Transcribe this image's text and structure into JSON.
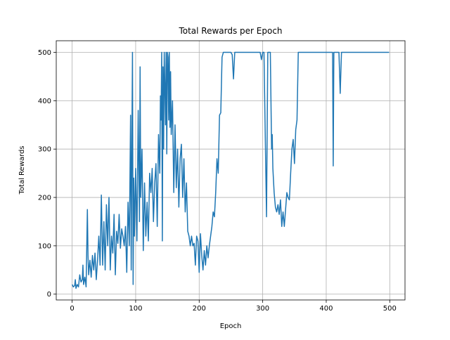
{
  "chart_data": {
    "type": "line",
    "title": "Total Rewards per Epoch",
    "xlabel": "Epoch",
    "ylabel": "Total Rewards",
    "x": [
      0,
      2,
      4,
      5,
      6,
      8,
      10,
      12,
      14,
      16,
      17,
      18,
      20,
      22,
      24,
      25,
      26,
      28,
      30,
      32,
      34,
      36,
      38,
      40,
      42,
      44,
      46,
      48,
      50,
      52,
      54,
      56,
      58,
      60,
      62,
      64,
      66,
      68,
      70,
      72,
      74,
      76,
      78,
      80,
      82,
      84,
      86,
      88,
      90,
      92,
      93,
      94,
      95,
      96,
      97,
      98,
      100,
      102,
      104,
      106,
      107,
      108,
      110,
      112,
      114,
      116,
      118,
      120,
      122,
      124,
      126,
      128,
      130,
      132,
      134,
      136,
      138,
      139,
      140,
      141,
      142,
      143,
      144,
      145,
      146,
      147,
      148,
      149,
      150,
      151,
      152,
      153,
      154,
      155,
      156,
      158,
      160,
      162,
      164,
      166,
      168,
      170,
      172,
      174,
      176,
      178,
      180,
      182,
      184,
      186,
      188,
      190,
      192,
      194,
      196,
      198,
      200,
      202,
      204,
      206,
      208,
      210,
      212,
      214,
      216,
      218,
      220,
      222,
      224,
      226,
      228,
      230,
      232,
      234,
      236,
      238,
      250,
      252,
      254,
      256,
      296,
      298,
      300,
      302,
      304,
      306,
      308,
      310,
      312,
      314,
      315,
      316,
      318,
      320,
      322,
      324,
      326,
      328,
      330,
      332,
      334,
      336,
      338,
      340,
      342,
      344,
      346,
      348,
      350,
      352,
      354,
      356,
      410,
      411,
      412,
      420,
      422,
      424,
      499
    ],
    "series": [
      {
        "name": "Total Rewards",
        "color": "#1f77b4",
        "values": [
          20,
          15,
          18,
          30,
          12,
          20,
          15,
          40,
          25,
          30,
          60,
          20,
          35,
          15,
          175,
          80,
          40,
          70,
          35,
          80,
          50,
          85,
          30,
          70,
          120,
          60,
          205,
          60,
          150,
          50,
          185,
          100,
          200,
          50,
          120,
          85,
          165,
          40,
          130,
          105,
          165,
          95,
          135,
          120,
          100,
          140,
          45,
          190,
          100,
          370,
          50,
          300,
          500,
          20,
          240,
          120,
          260,
          110,
          380,
          150,
          470,
          200,
          300,
          90,
          230,
          120,
          190,
          110,
          250,
          210,
          260,
          150,
          230,
          270,
          140,
          330,
          250,
          410,
          360,
          500,
          110,
          470,
          300,
          500,
          430,
          350,
          500,
          290,
          500,
          490,
          360,
          500,
          345,
          460,
          330,
          400,
          210,
          350,
          220,
          300,
          180,
          280,
          310,
          200,
          280,
          170,
          230,
          130,
          120,
          100,
          120,
          100,
          105,
          60,
          120,
          110,
          45,
          125,
          80,
          50,
          90,
          60,
          100,
          75,
          100,
          120,
          140,
          170,
          160,
          210,
          280,
          250,
          370,
          375,
          490,
          500,
          500,
          495,
          445,
          500,
          500,
          485,
          500,
          500,
          330,
          160,
          500,
          500,
          500,
          300,
          330,
          260,
          210,
          180,
          170,
          185,
          165,
          195,
          140,
          170,
          140,
          175,
          210,
          200,
          195,
          250,
          300,
          320,
          270,
          340,
          360,
          500,
          500,
          265,
          500,
          500,
          415,
          500,
          500
        ]
      }
    ],
    "xlim": [
      -25,
      524
    ],
    "ylim": [
      -12,
      524
    ],
    "xticks": [
      0,
      100,
      200,
      300,
      400,
      500
    ],
    "yticks": [
      0,
      100,
      200,
      300,
      400,
      500
    ],
    "grid": true
  }
}
